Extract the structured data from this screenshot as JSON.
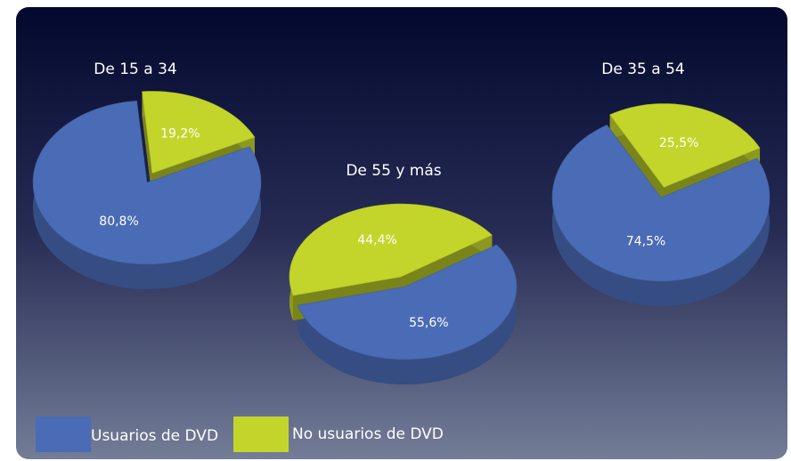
{
  "chart_data": [
    {
      "type": "pie",
      "title": "De 15 a 34",
      "categories": [
        "Usuarios de DVD",
        "No usuarios de DVD"
      ],
      "values": [
        80.8,
        19.2
      ],
      "value_labels": [
        "80,8%",
        "19,2%"
      ],
      "colors": [
        "#4a6bb5",
        "#c3d52b"
      ]
    },
    {
      "type": "pie",
      "title": "De 55 y más",
      "categories": [
        "Usuarios de DVD",
        "No usuarios de DVD"
      ],
      "values": [
        55.6,
        44.4
      ],
      "value_labels": [
        "55,6%",
        "44,4%"
      ],
      "colors": [
        "#4a6bb5",
        "#c3d52b"
      ]
    },
    {
      "type": "pie",
      "title": "De 35 a 54",
      "categories": [
        "Usuarios de DVD",
        "No usuarios de DVD"
      ],
      "values": [
        74.5,
        25.5
      ],
      "value_labels": [
        "74,5%",
        "25,5%"
      ],
      "colors": [
        "#4a6bb5",
        "#c3d52b"
      ]
    }
  ]
}
